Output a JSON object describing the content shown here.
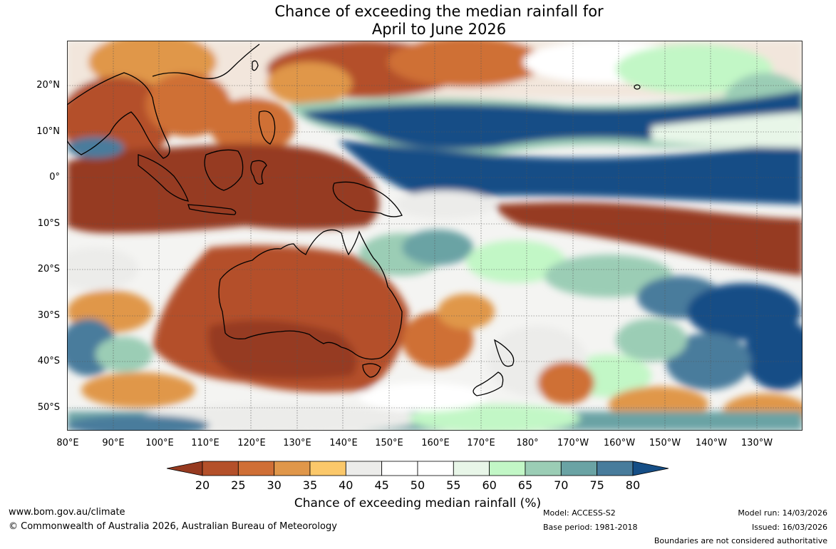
{
  "title": {
    "line1": "Chance of exceeding the median rainfall for",
    "line2": "April to June 2026"
  },
  "map": {
    "lat_labels": [
      "20°N",
      "10°N",
      "0°",
      "10°S",
      "20°S",
      "30°S",
      "40°S",
      "50°S"
    ],
    "lon_labels": [
      "80°E",
      "90°E",
      "100°E",
      "110°E",
      "120°E",
      "130°E",
      "140°E",
      "150°E",
      "160°E",
      "170°E",
      "180°",
      "170°W",
      "160°W",
      "150°W",
      "140°W",
      "130°W"
    ]
  },
  "colorbar": {
    "ticks": [
      "20",
      "25",
      "30",
      "35",
      "40",
      "45",
      "50",
      "55",
      "60",
      "65",
      "70",
      "75",
      "80"
    ],
    "colors": [
      "#963a20",
      "#b4502a",
      "#cf6f36",
      "#e0974a",
      "#fbc86a",
      "#ececea",
      "#ffffff",
      "#ffffff",
      "#e8f6e8",
      "#c2f7c6",
      "#9bcdb5",
      "#6aa3a4",
      "#487c9c",
      "#154e86"
    ],
    "title": "Chance of exceeding median rainfall (%)"
  },
  "footer": {
    "url": "www.bom.gov.au/climate",
    "copyright": "© Commonwealth of Australia 2026, Australian Bureau of Meteorology",
    "model": "Model: ACCESS-S2",
    "base_period": "Base period: 1981-2018",
    "model_run": "Model run: 14/03/2026",
    "issued": "Issued: 16/03/2026",
    "disclaimer": "Boundaries are not considered authoritative"
  }
}
